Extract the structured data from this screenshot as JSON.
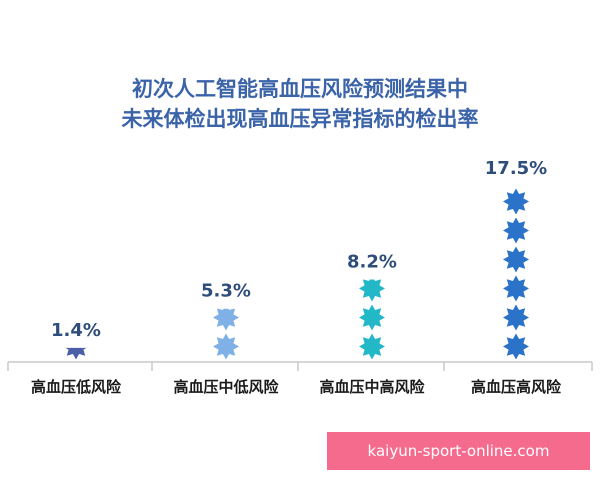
{
  "colors": {
    "low": "#4a5fa8",
    "mid_low": "#7fb0e6",
    "mid_high": "#23b8c8",
    "high": "#2b73c8",
    "title": "#3a63a8",
    "axis": "#c9c9c9",
    "watermark_bg": "#f56b8d"
  },
  "chart_data": {
    "type": "bar",
    "title_lines": [
      "初次人工智能高血压风险预测结果中",
      "未来体检出现高血压异常指标的检出率"
    ],
    "categories": [
      "高血压低风险",
      "高血压中低风险",
      "高血压中高风险",
      "高血压高风险"
    ],
    "values": [
      1.4,
      5.3,
      8.2,
      17.5
    ],
    "value_labels": [
      "1.4%",
      "5.3%",
      "8.2%",
      "17.5%"
    ],
    "unit": "%",
    "ylim": [
      0,
      18.5
    ],
    "mark_shape": "star-icon",
    "grid": false,
    "legend": "none"
  },
  "watermark": "kaiyun-sport-online.com"
}
